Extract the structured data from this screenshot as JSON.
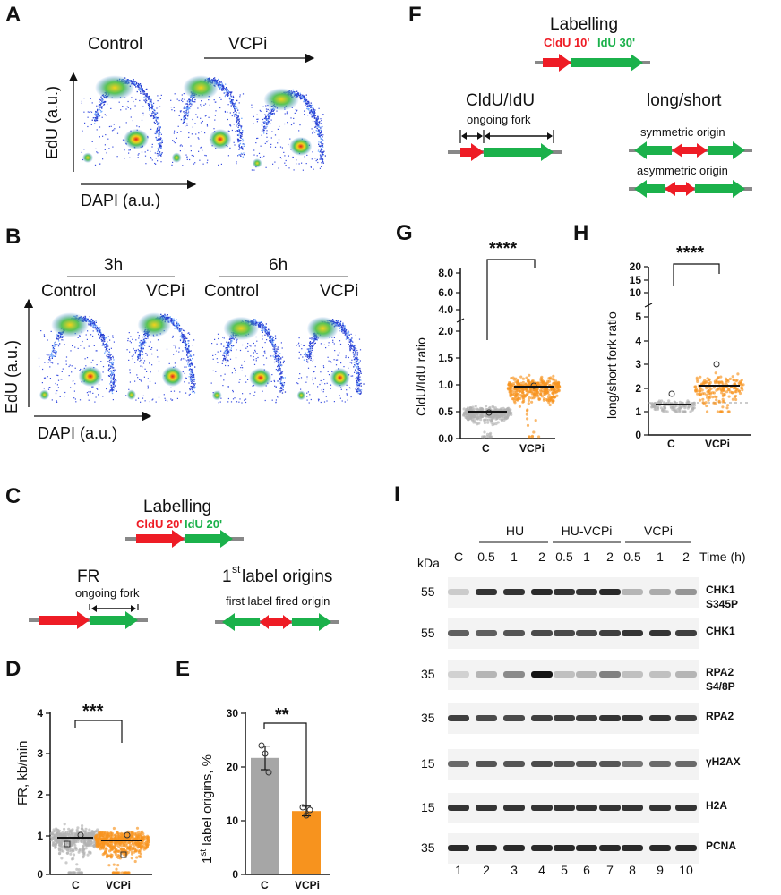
{
  "colors": {
    "red": "#ee1c25",
    "green": "#1bb14b",
    "grey": "#9e9e9e",
    "orange": "#f7931e",
    "gray_bar": "#a6a6a6"
  },
  "panelA": {
    "letter": "A",
    "control": "Control",
    "vcpi": "VCPi",
    "ylabel": "EdU (a.u.)",
    "xlabel": "DAPI (a.u.)"
  },
  "panelB": {
    "letter": "B",
    "h3": "3h",
    "h6": "6h",
    "control": "Control",
    "vcpi": "VCPi",
    "ylabel": "EdU (a.u.)",
    "xlabel": "DAPI (a.u.)"
  },
  "panelC": {
    "letter": "C",
    "title": "Labelling",
    "cldu": "CldU 20'",
    "idu": "IdU 20'",
    "fr": "FR",
    "ongoing": "ongoing fork",
    "first_label_sup": "st",
    "first_label_num": "1",
    "first_label_rest": " label origins",
    "fired": "first label fired origin"
  },
  "panelD": {
    "letter": "D",
    "ylabel": "FR, kb/min",
    "sig": "***",
    "yticks": [
      "0",
      "1",
      "2",
      "3",
      "4"
    ],
    "cats": [
      "C",
      "VCPi"
    ]
  },
  "panelE": {
    "letter": "E",
    "ylabel_pre": "1",
    "ylabel_sup": "st",
    "ylabel_post": " label origins, %",
    "sig": "**",
    "yticks": [
      "0",
      "10",
      "20",
      "30"
    ],
    "cats": [
      "C",
      "VCPi"
    ]
  },
  "panelF": {
    "letter": "F",
    "title": "Labelling",
    "cldu": "CldU 10'",
    "idu": "IdU 30'",
    "ratio": "CldU/IdU",
    "ongoing": "ongoing fork",
    "longshort": "long/short",
    "sym": "symmetric origin",
    "asym": "asymmetric origin"
  },
  "panelG": {
    "letter": "G",
    "ylabel": "CldU/IdU ratio",
    "sig": "****",
    "yticks": [
      "0.0",
      "0.5",
      "1.0",
      "1.5",
      "2.0",
      "4.0",
      "6.0",
      "8.0"
    ],
    "cats": [
      "C",
      "VCPi"
    ]
  },
  "panelH": {
    "letter": "H",
    "ylabel": "long/short fork ratio",
    "sig": "****",
    "yticks": [
      "0",
      "1",
      "2",
      "3",
      "4",
      "5",
      "10",
      "15",
      "20"
    ],
    "cats": [
      "C",
      "VCPi"
    ]
  },
  "chart_data": [
    {
      "type": "scatter",
      "panel": "D",
      "title": "",
      "ylabel": "FR, kb/min",
      "ylim": [
        0,
        4
      ],
      "categories": [
        "C",
        "VCPi"
      ],
      "medians": [
        0.92,
        0.85
      ],
      "significance": "***"
    },
    {
      "type": "bar",
      "panel": "E",
      "title": "",
      "ylabel": "1st label origins, %",
      "ylim": [
        0,
        30
      ],
      "categories": [
        "C",
        "VCPi"
      ],
      "values": [
        21.7,
        11.8
      ],
      "errors": [
        2.2,
        0.9
      ],
      "replicates": [
        [
          24,
          22.5,
          19
        ],
        [
          12.5,
          11,
          12
        ]
      ],
      "significance": "**"
    },
    {
      "type": "scatter",
      "panel": "G",
      "title": "",
      "ylabel": "CldU/IdU ratio",
      "ylim": [
        0,
        8
      ],
      "categories": [
        "C",
        "VCPi"
      ],
      "medians": [
        0.43,
        0.88
      ],
      "significance": "****"
    },
    {
      "type": "scatter",
      "panel": "H",
      "title": "",
      "ylabel": "long/short fork ratio",
      "ylim": [
        0,
        20
      ],
      "categories": [
        "C",
        "VCPi"
      ],
      "medians": [
        1.25,
        2.05
      ],
      "significance": "****"
    }
  ],
  "panelI": {
    "letter": "I",
    "groups": [
      "HU",
      "HU-VCPi",
      "VCPi"
    ],
    "c_label": "C",
    "times": [
      "0.5",
      "1",
      "2",
      "0.5",
      "1",
      "2",
      "0.5",
      "1",
      "2"
    ],
    "time_label": "Time (h)",
    "kda_label": "kDa",
    "lanes": [
      "1",
      "2",
      "3",
      "4",
      "5",
      "6",
      "7",
      "8",
      "9",
      "10"
    ],
    "rows": [
      {
        "kda": "55",
        "name": "CHK1",
        "name2": "S345P",
        "intensity": [
          0.15,
          0.85,
          0.85,
          0.9,
          0.85,
          0.85,
          0.9,
          0.25,
          0.3,
          0.4
        ]
      },
      {
        "kda": "55",
        "name": "CHK1",
        "name2": "",
        "intensity": [
          0.65,
          0.65,
          0.7,
          0.75,
          0.75,
          0.75,
          0.8,
          0.85,
          0.85,
          0.8
        ]
      },
      {
        "kda": "35",
        "name": "RPA2",
        "name2": "S4/8P",
        "intensity": [
          0.12,
          0.25,
          0.45,
          1.0,
          0.2,
          0.25,
          0.5,
          0.2,
          0.2,
          0.25
        ]
      },
      {
        "kda": "35",
        "name": "RPA2",
        "name2": "",
        "intensity": [
          0.8,
          0.75,
          0.75,
          0.8,
          0.8,
          0.8,
          0.85,
          0.85,
          0.85,
          0.8
        ]
      },
      {
        "kda": "15",
        "name": "γH2AX",
        "name2": "",
        "intensity": [
          0.6,
          0.7,
          0.7,
          0.75,
          0.7,
          0.7,
          0.7,
          0.55,
          0.6,
          0.6
        ]
      },
      {
        "kda": "15",
        "name": "H2A",
        "name2": "",
        "intensity": [
          0.85,
          0.85,
          0.85,
          0.85,
          0.85,
          0.85,
          0.85,
          0.85,
          0.85,
          0.85
        ]
      },
      {
        "kda": "35",
        "name": "PCNA",
        "name2": "",
        "intensity": [
          0.9,
          0.9,
          0.9,
          0.9,
          0.9,
          0.9,
          0.9,
          0.9,
          0.9,
          0.9
        ]
      }
    ]
  }
}
